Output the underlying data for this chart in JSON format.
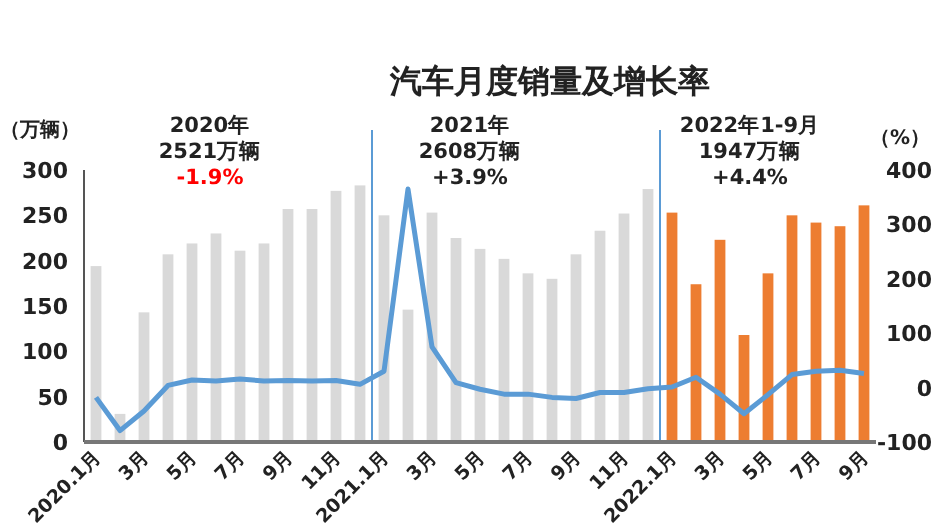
{
  "chart_data": {
    "type": "bar",
    "title": "汽车月度销量及增长率",
    "ylabel": "（万辆）",
    "y2label": "（%）",
    "categories": [
      "2020.1月",
      null,
      "3月",
      null,
      "5月",
      null,
      "7月",
      null,
      "9月",
      null,
      "11月",
      null,
      "2021.1月",
      null,
      "3月",
      null,
      "5月",
      null,
      "7月",
      null,
      "9月",
      null,
      "11月",
      null,
      "2022.1月",
      null,
      "3月",
      null,
      "5月",
      null,
      "7月",
      null,
      "9月"
    ],
    "series": [
      {
        "colors": [
          "#d9d9d9",
          "#d9d9d9",
          "#d9d9d9",
          "#d9d9d9",
          "#d9d9d9",
          "#d9d9d9",
          "#d9d9d9",
          "#d9d9d9",
          "#d9d9d9",
          "#d9d9d9",
          "#d9d9d9",
          "#d9d9d9",
          "#d9d9d9",
          "#d9d9d9",
          "#d9d9d9",
          "#d9d9d9",
          "#d9d9d9",
          "#d9d9d9",
          "#d9d9d9",
          "#d9d9d9",
          "#d9d9d9",
          "#d9d9d9",
          "#d9d9d9",
          "#d9d9d9",
          "#ed7d31",
          "#ed7d31",
          "#ed7d31",
          "#ed7d31",
          "#ed7d31",
          "#ed7d31",
          "#ed7d31",
          "#ed7d31",
          "#ed7d31"
        ],
        "values": [
          194,
          31,
          143,
          207,
          219,
          230,
          211,
          219,
          257,
          257,
          277,
          283,
          250,
          146,
          253,
          225,
          213,
          202,
          186,
          180,
          207,
          233,
          252,
          279,
          253,
          174,
          223,
          118,
          186,
          250,
          242,
          238,
          261
        ]
      },
      {
        "type": "line",
        "axis": "y2",
        "color": "#5b9bd5",
        "marker": "none",
        "values": [
          -18,
          -79,
          -43,
          4,
          14,
          12,
          16,
          12,
          13,
          12,
          13,
          6,
          30,
          365,
          75,
          9,
          -3,
          -12,
          -12,
          -18,
          -20,
          -9,
          -9,
          -2,
          1,
          19,
          -12,
          -48,
          -13,
          24,
          30,
          32,
          26
        ]
      }
    ],
    "ylim": [
      0,
      300
    ],
    "yticks": [
      0,
      50,
      100,
      150,
      200,
      250,
      300
    ],
    "y2lim": [
      -100,
      400
    ],
    "y2ticks": [
      -100,
      0,
      100,
      200,
      300,
      400
    ],
    "grid": false,
    "annotations": [
      "2020年",
      "2521万辆",
      "-1.9%",
      "2021年",
      "2608万辆",
      "+3.9%",
      "2022年1-9月",
      "1947万辆",
      "+4.4%"
    ]
  }
}
